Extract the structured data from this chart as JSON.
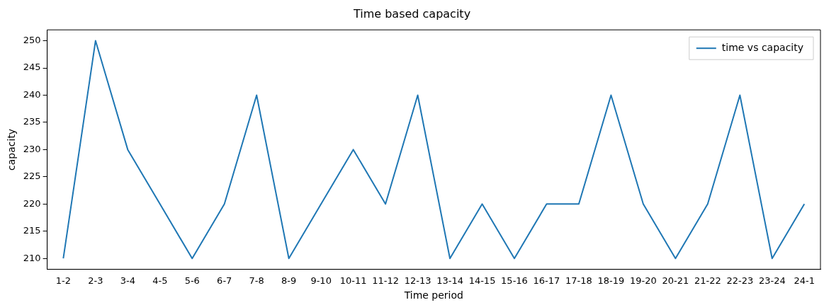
{
  "chart_data": {
    "type": "line",
    "title": "Time based capacity",
    "xlabel": "Time period",
    "ylabel": "capacity",
    "categories": [
      "1-2",
      "2-3",
      "3-4",
      "4-5",
      "5-6",
      "6-7",
      "7-8",
      "8-9",
      "9-10",
      "10-11",
      "11-12",
      "12-13",
      "13-14",
      "14-15",
      "15-16",
      "16-17",
      "17-18",
      "18-19",
      "19-20",
      "20-21",
      "21-22",
      "22-23",
      "23-24",
      "24-1"
    ],
    "series": [
      {
        "name": "time vs capacity",
        "color": "#1f77b4",
        "values": [
          210,
          250,
          230,
          220,
          210,
          220,
          240,
          210,
          220,
          230,
          220,
          240,
          210,
          220,
          210,
          220,
          220,
          240,
          220,
          210,
          220,
          240,
          210,
          220
        ]
      }
    ],
    "ylim": [
      208,
      252
    ],
    "yticks": [
      210,
      215,
      220,
      225,
      230,
      235,
      240,
      245,
      250
    ],
    "grid": false,
    "legend": "top right",
    "marker": "none",
    "line_style": "solid"
  }
}
